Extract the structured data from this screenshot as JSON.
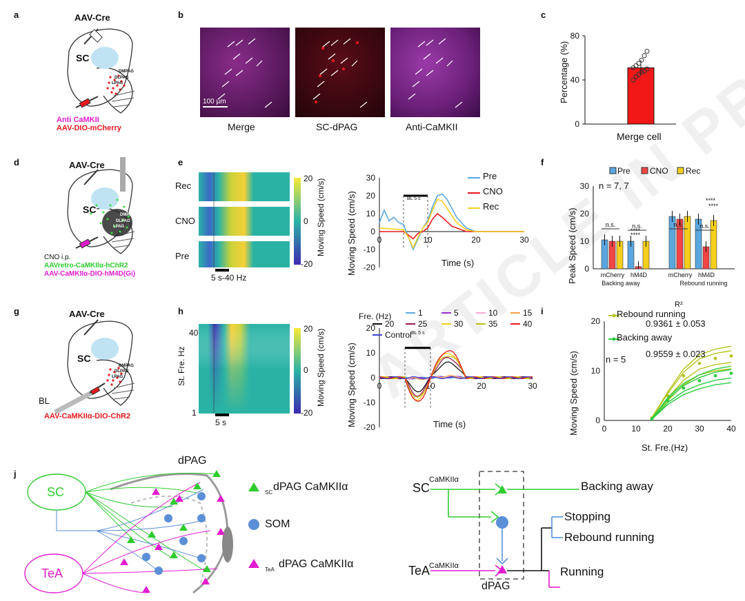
{
  "panels": {
    "a": "a",
    "b": "b",
    "c": "c",
    "d": "d",
    "e": "e",
    "f": "f",
    "g": "g",
    "h": "h",
    "i": "i",
    "j": "j"
  },
  "a": {
    "virus": "AAV-Cre",
    "region": "SC",
    "dmpag": "DMPAG",
    "dlpag": "DLPAG",
    "lpag": "LPAG",
    "legend1": "Anti CaMKII",
    "legend2": "AAV-DIO-mCherry"
  },
  "b": {
    "scale": "100 µm",
    "labels": [
      "Merge",
      "SC-dPAG",
      "Anti-CaMKII"
    ]
  },
  "c": {
    "ylabel": "Percentage (%)",
    "xlabel": "Merge cell",
    "ticks": [
      "80",
      "40",
      "0"
    ],
    "chart_data": {
      "type": "bar",
      "categories": [
        "Merge cell"
      ],
      "values": [
        51
      ],
      "ylim": [
        0,
        80
      ],
      "points": [
        40,
        43,
        45,
        47,
        48,
        50,
        51,
        53,
        55,
        58,
        62,
        66
      ]
    }
  },
  "d": {
    "virus": "AAV-Cre",
    "region": "SC",
    "dmpag": "DMPAG",
    "dlpag": "DLPAG",
    "lpag": "LPAG",
    "cno": "CNO i.p.",
    "legend1": "AAVretro-CaMKIIα-hChR2",
    "legend2": "AAV-CaMKIIα-DIO-hM4D(Gi)"
  },
  "e": {
    "rows": [
      "Rec",
      "CNO",
      "Pre"
    ],
    "stim": "5 s-40 Hz",
    "cbar_ticks": [
      "20",
      "0",
      "-20"
    ],
    "cbar_label": "Moving Speed (cm/s)",
    "ylabel": "Moving Speed (cm/s)",
    "xlabel": "Time (s)",
    "bl": "BL 5 s",
    "yticks": [
      "30",
      "20",
      "10",
      "0",
      "-10",
      "-20"
    ],
    "xticks": [
      "0",
      "10",
      "20",
      "30"
    ],
    "legend": [
      "Pre",
      "CNO",
      "Rec"
    ]
  },
  "f": {
    "ylabel": "Peak Speed (cm/s)",
    "legend": [
      "Pre",
      "CNO",
      "Rec"
    ],
    "n": "n = 7, 7",
    "ticks": [
      "30",
      "20",
      "10",
      "0"
    ],
    "groups": [
      "mCherry",
      "hM4D",
      "mCherry",
      "hM4D"
    ],
    "cats": [
      "Backing away",
      "Rebound running"
    ],
    "ns": "n.s.",
    "stars": "****",
    "chart_data": {
      "type": "bar",
      "categories": [
        "mCherry Backing away",
        "hM4D Backing away",
        "mCherry Rebound running",
        "hM4D Rebound running"
      ],
      "series": [
        {
          "name": "Pre",
          "values": [
            10.5,
            10,
            19,
            18
          ]
        },
        {
          "name": "CNO",
          "values": [
            10,
            0.8,
            18,
            8
          ]
        },
        {
          "name": "Rec",
          "values": [
            10,
            10,
            19,
            17.5
          ]
        }
      ],
      "ylim": [
        0,
        30
      ]
    }
  },
  "g": {
    "virus": "AAV-Cre",
    "region": "SC",
    "bl": "BL",
    "dmpag": "DMPAG",
    "dlpag": "DLPAG",
    "lpag": "LPAG",
    "legend": "AAV-CaMKIIα-DIO-ChR2"
  },
  "h": {
    "ylabel": "St. Fre. Hz",
    "ytop": "40",
    "ybot": "1",
    "stim": "5 s",
    "cbar_ticks": [
      "20",
      "0",
      "-20"
    ],
    "cbar_label": "Moving Speed (cm/s)",
    "ylabel2": "Moving Speed (cm/s)",
    "xlabel": "Time (s)",
    "bl": "BL 5 s",
    "yticks": [
      "20",
      "10",
      "0",
      "-10",
      "-20"
    ],
    "xticks": [
      "0",
      "10",
      "20",
      "30"
    ],
    "legend_title": "Fre. (Hz)",
    "legend": [
      "1",
      "5",
      "10",
      "15",
      "20",
      "25",
      "30",
      "35",
      "40",
      "Control"
    ]
  },
  "i": {
    "r2": "R²",
    "s1": "Rebound running",
    "v1": "0.9361 ± 0.053",
    "s2": "Backing away",
    "v2": "0.9559 ± 0.023",
    "n": "n = 5",
    "ylabel": "Moving Speed (cm/s)",
    "xlabel": "St. Fre.(Hz)",
    "yticks": [
      "20",
      "10",
      "0"
    ],
    "xticks": [
      "0",
      "10",
      "20",
      "30",
      "40"
    ],
    "chart_data": {
      "type": "line",
      "x": [
        15,
        20,
        25,
        30,
        35,
        40
      ],
      "series": [
        {
          "name": "Rebound running",
          "values": [
            0.5,
            5,
            9,
            11.5,
            12.5,
            13
          ]
        },
        {
          "name": "Backing away",
          "values": [
            0.3,
            4,
            6.5,
            8,
            9,
            9.5
          ]
        }
      ],
      "ylim": [
        0,
        20
      ]
    }
  },
  "j": {
    "dpag": "dPAG",
    "sc": "SC",
    "tea": "TeA",
    "leg1_sub": "SC",
    "leg1": "dPAG CaMKIIα",
    "leg2": "SOM",
    "leg3_sub": "TeA",
    "leg3": "dPAG CaMKIIα",
    "camk1": "CaMKIIα",
    "camk2": "CaMKIIα",
    "sc2": "SC",
    "tea2": "TeA",
    "dpag2": "dPAG",
    "out1": "Backing away",
    "out2": "Stopping",
    "out3": "Rebound running",
    "out4": "Running"
  },
  "watermark": "ARTICLE IN PRESS"
}
